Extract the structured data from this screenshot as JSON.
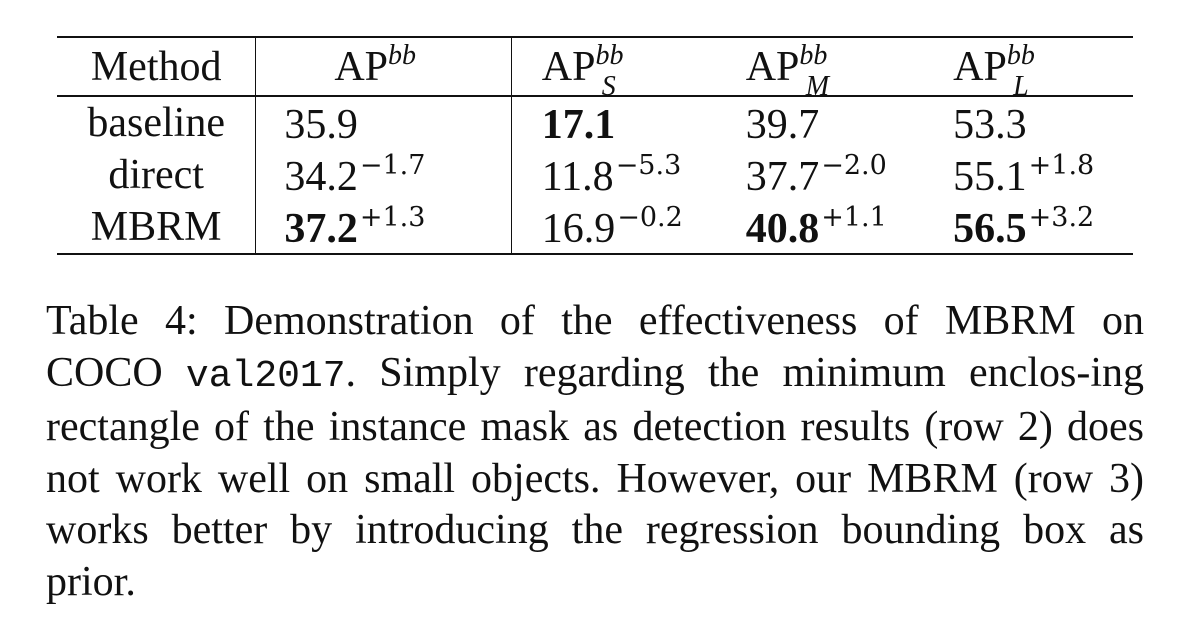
{
  "table": {
    "headers": {
      "method": "Method",
      "ap": {
        "base": "AP",
        "sup": "bb",
        "sub": ""
      },
      "ap_s": {
        "base": "AP",
        "sup": "bb",
        "sub": "S"
      },
      "ap_m": {
        "base": "AP",
        "sup": "bb",
        "sub": "M"
      },
      "ap_l": {
        "base": "AP",
        "sup": "bb",
        "sub": "L"
      }
    },
    "rows": [
      {
        "method": "baseline",
        "ap": {
          "value": "35.9",
          "delta": ""
        },
        "ap_s": {
          "value": "17.1",
          "delta": ""
        },
        "ap_m": {
          "value": "39.7",
          "delta": ""
        },
        "ap_l": {
          "value": "53.3",
          "delta": ""
        }
      },
      {
        "method": "direct",
        "ap": {
          "value": "34.2",
          "delta": "−1.7"
        },
        "ap_s": {
          "value": "11.8",
          "delta": "−5.3"
        },
        "ap_m": {
          "value": "37.7",
          "delta": "−2.0"
        },
        "ap_l": {
          "value": "55.1",
          "delta": "+1.8"
        }
      },
      {
        "method": "MBRM",
        "ap": {
          "value": "37.2",
          "delta": "+1.3"
        },
        "ap_s": {
          "value": "16.9",
          "delta": "−0.2"
        },
        "ap_m": {
          "value": "40.8",
          "delta": "+1.1"
        },
        "ap_l": {
          "value": "56.5",
          "delta": "+3.2"
        }
      }
    ]
  },
  "caption": {
    "part1": "Table 4: Demonstration of the effectiveness of MBRM on COCO ",
    "code": "val2017",
    "part2": ". Simply regarding the minimum enclos-ing rectangle of the instance mask as detection results (row 2) does not work well on small objects. However, our MBRM (row 3) works better by introducing the regression bounding box as prior."
  }
}
